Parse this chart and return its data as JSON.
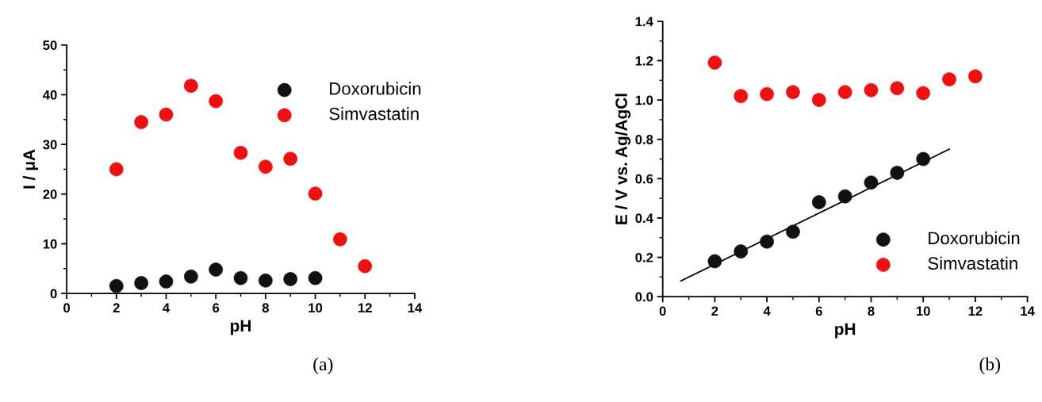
{
  "chart_data": [
    {
      "type": "scatter",
      "xlabel": "pH",
      "ylabel": "I / μA",
      "xlim": [
        0,
        14
      ],
      "xticks": [
        0,
        2,
        4,
        6,
        8,
        10,
        12,
        14
      ],
      "ylim": [
        0,
        50
      ],
      "yticks": [
        0,
        10,
        20,
        30,
        40,
        50
      ],
      "marker": "circle",
      "legend": "top right",
      "grid": false,
      "annotations": [
        "(a)"
      ],
      "x": [
        2,
        3,
        4,
        5,
        6,
        7,
        8,
        9,
        10,
        11,
        12
      ],
      "series": [
        {
          "name": "Doxorubicin",
          "color": "#111111",
          "x": [
            2,
            3,
            4,
            5,
            6,
            7,
            8,
            9,
            10
          ],
          "values": [
            1.5,
            2.1,
            2.4,
            3.4,
            4.8,
            3.1,
            2.6,
            2.9,
            3.1
          ]
        },
        {
          "name": "Simvastatin",
          "color": "#ee1111",
          "values": [
            25,
            34.5,
            36,
            41.8,
            38.7,
            28.3,
            25.5,
            27.1,
            20.1,
            10.9,
            5.5
          ]
        }
      ]
    },
    {
      "type": "scatter",
      "xlabel": "pH",
      "ylabel": "E / V vs. Ag/AgCl",
      "xlim": [
        0,
        14
      ],
      "xticks": [
        0,
        2,
        4,
        6,
        8,
        10,
        12,
        14
      ],
      "ylim": [
        0,
        1.4
      ],
      "yticks": [
        {
          "value": 0,
          "label": "0.0"
        },
        0.2,
        0.4,
        0.6,
        0.8,
        {
          "value": 1,
          "label": "1.0"
        },
        1.2,
        1.4
      ],
      "marker": "circle",
      "legend": "bottom right",
      "grid": false,
      "annotations": [
        "(b)"
      ],
      "x": [
        2,
        3,
        4,
        5,
        6,
        7,
        8,
        9,
        10,
        11,
        12
      ],
      "series": [
        {
          "type": "line",
          "color": "#000000",
          "marker": "none",
          "x": [
            0.7,
            11
          ],
          "values": [
            0.08,
            0.75
          ]
        },
        {
          "name": "Doxorubicin",
          "color": "#111111",
          "x": [
            2,
            3,
            4,
            5,
            6,
            7,
            8,
            9,
            10
          ],
          "values": [
            0.18,
            0.23,
            0.28,
            0.33,
            0.48,
            0.51,
            0.58,
            0.63,
            0.7
          ]
        },
        {
          "name": "Simvastatin",
          "color": "#ee1111",
          "values": [
            1.19,
            1.02,
            1.03,
            1.04,
            1.0,
            1.04,
            1.05,
            1.06,
            1.035,
            1.105,
            1.12
          ]
        }
      ]
    }
  ]
}
